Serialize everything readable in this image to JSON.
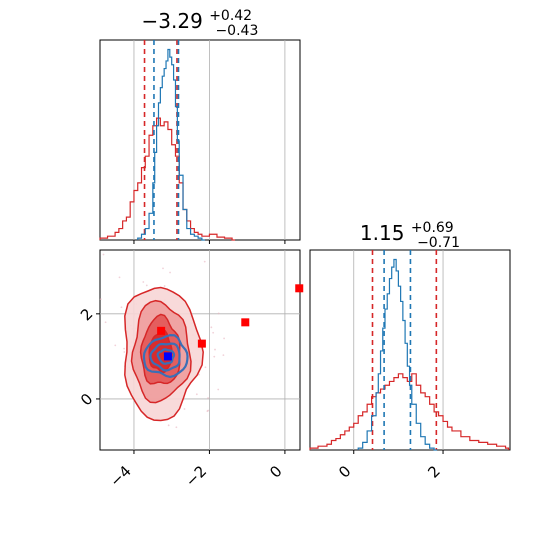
{
  "chart_data": [
    {
      "type": "histogram",
      "panel": "top-left",
      "title_value": "−3.29",
      "title_sup": "+0.42",
      "title_sub": "−0.43",
      "xlim": [
        -4.9,
        0.4
      ],
      "xticks": [
        -4,
        -2,
        0
      ],
      "grid": true,
      "series": [
        {
          "color": "#d62728",
          "quantiles": [
            -3.72,
            -2.86
          ],
          "hist_x": [
            -4.9,
            -4.7,
            -4.5,
            -4.4,
            -4.3,
            -4.2,
            -4.1,
            -4.0,
            -3.9,
            -3.8,
            -3.7,
            -3.6,
            -3.5,
            -3.4,
            -3.3,
            -3.2,
            -3.1,
            -3.0,
            -2.9,
            -2.8,
            -2.7,
            -2.6,
            -2.5,
            -2.4,
            -2.3,
            -2.2,
            -2.0,
            -1.8,
            -1.6,
            -1.4
          ],
          "hist_y": [
            0.01,
            0.02,
            0.04,
            0.06,
            0.1,
            0.12,
            0.2,
            0.26,
            0.3,
            0.38,
            0.44,
            0.55,
            0.6,
            0.64,
            0.6,
            0.62,
            0.58,
            0.5,
            0.44,
            0.3,
            0.16,
            0.1,
            0.06,
            0.04,
            0.03,
            0.02,
            0.03,
            0.015,
            0.01,
            0.0
          ]
        },
        {
          "color": "#1f77b4",
          "quantiles": [
            -3.47,
            -2.82
          ],
          "hist_x": [
            -3.9,
            -3.8,
            -3.7,
            -3.6,
            -3.5,
            -3.45,
            -3.4,
            -3.35,
            -3.3,
            -3.25,
            -3.2,
            -3.15,
            -3.1,
            -3.05,
            -3.0,
            -2.95,
            -2.9,
            -2.85,
            -2.8,
            -2.7,
            -2.6,
            -2.5,
            -2.4,
            -2.3,
            -2.2
          ],
          "hist_y": [
            0.01,
            0.03,
            0.06,
            0.14,
            0.3,
            0.46,
            0.6,
            0.72,
            0.8,
            0.86,
            0.9,
            0.94,
            1.0,
            0.96,
            0.92,
            0.84,
            0.7,
            0.52,
            0.34,
            0.16,
            0.06,
            0.03,
            0.02,
            0.01,
            0.0
          ]
        }
      ]
    },
    {
      "type": "histogram",
      "panel": "bottom-right",
      "title_value": "1.15",
      "title_sup": "+0.69",
      "title_sub": "−0.71",
      "xlim": [
        -0.98,
        3.5
      ],
      "xticks": [
        0,
        2
      ],
      "grid": true,
      "series": [
        {
          "color": "#d62728",
          "quantiles": [
            0.42,
            1.85
          ],
          "hist_x": [
            -0.98,
            -0.8,
            -0.6,
            -0.5,
            -0.4,
            -0.3,
            -0.2,
            -0.1,
            0.0,
            0.1,
            0.2,
            0.3,
            0.4,
            0.5,
            0.6,
            0.7,
            0.8,
            0.9,
            1.0,
            1.1,
            1.2,
            1.3,
            1.4,
            1.5,
            1.6,
            1.7,
            1.8,
            1.9,
            2.0,
            2.1,
            2.2,
            2.4,
            2.6,
            2.8,
            3.0,
            3.2,
            3.4
          ],
          "hist_y": [
            0.01,
            0.02,
            0.03,
            0.05,
            0.06,
            0.08,
            0.1,
            0.12,
            0.14,
            0.18,
            0.2,
            0.24,
            0.28,
            0.3,
            0.32,
            0.34,
            0.36,
            0.38,
            0.4,
            0.38,
            0.36,
            0.4,
            0.34,
            0.3,
            0.28,
            0.24,
            0.2,
            0.18,
            0.15,
            0.12,
            0.1,
            0.07,
            0.05,
            0.04,
            0.03,
            0.02,
            0.01
          ]
        },
        {
          "color": "#1f77b4",
          "quantiles": [
            0.68,
            1.27
          ],
          "hist_x": [
            0.1,
            0.2,
            0.3,
            0.4,
            0.5,
            0.55,
            0.6,
            0.65,
            0.7,
            0.75,
            0.8,
            0.85,
            0.9,
            0.95,
            1.0,
            1.05,
            1.1,
            1.15,
            1.2,
            1.25,
            1.3,
            1.4,
            1.5,
            1.6,
            1.7,
            1.8
          ],
          "hist_y": [
            0.01,
            0.04,
            0.1,
            0.18,
            0.3,
            0.4,
            0.52,
            0.64,
            0.74,
            0.82,
            0.9,
            0.96,
            1.0,
            0.94,
            0.86,
            0.78,
            0.68,
            0.56,
            0.44,
            0.34,
            0.24,
            0.14,
            0.07,
            0.03,
            0.01,
            0.0
          ]
        }
      ]
    },
    {
      "type": "contour",
      "panel": "bottom-left",
      "xlim": [
        -4.9,
        0.4
      ],
      "ylim": [
        -1.2,
        3.5
      ],
      "xticks": [
        -4,
        -2,
        0
      ],
      "yticks": [
        0,
        2
      ],
      "grid": true,
      "series": [
        {
          "color": "#d62728",
          "center": [
            -3.29,
            1.15
          ],
          "sigma": [
            0.43,
            0.7
          ],
          "levels": 4
        },
        {
          "color": "#1f77b4",
          "center": [
            -3.15,
            1.0
          ],
          "sigma": [
            0.22,
            0.22
          ],
          "levels": 3
        }
      ],
      "markers": [
        {
          "color": "#ff0000",
          "x": -3.28,
          "y": 1.6
        },
        {
          "color": "#ff0000",
          "x": -2.2,
          "y": 1.3
        },
        {
          "color": "#ff0000",
          "x": -1.05,
          "y": 1.8
        },
        {
          "color": "#ff0000",
          "x": 0.38,
          "y": 2.6
        },
        {
          "color": "#0000ff",
          "x": -3.1,
          "y": 1.0
        }
      ]
    }
  ]
}
